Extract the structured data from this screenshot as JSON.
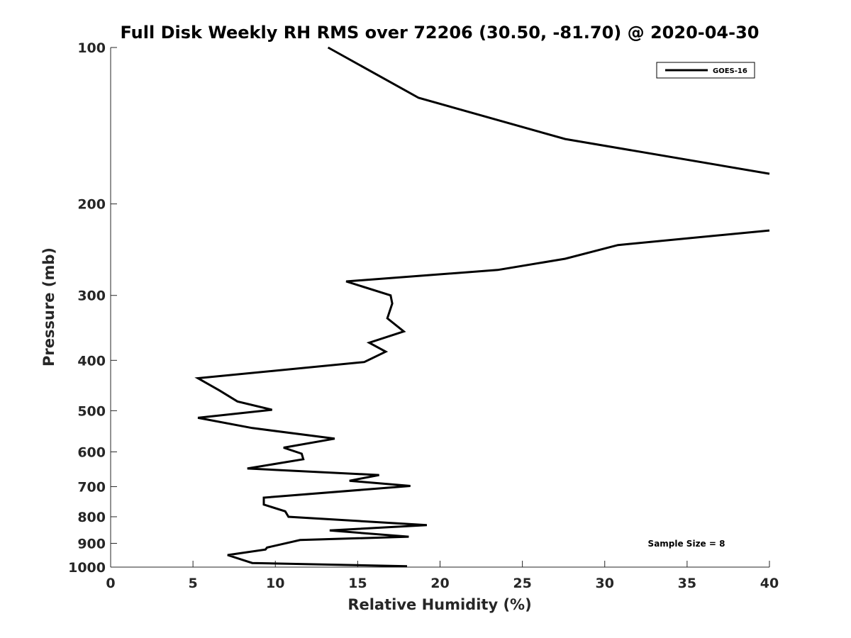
{
  "chart_data": {
    "type": "line",
    "title": "Full Disk Weekly RH RMS over 72206 (30.50, -81.70) @ 2020-04-30",
    "xlabel": "Relative Humidity (%)",
    "ylabel": "Pressure (mb)",
    "xlim": [
      0,
      40
    ],
    "ylim": [
      100,
      1000
    ],
    "yscale": "log",
    "y_reversed": true,
    "xticks": [
      0,
      5,
      10,
      15,
      20,
      25,
      30,
      35,
      40
    ],
    "yticks": [
      100,
      200,
      300,
      400,
      500,
      600,
      700,
      800,
      900,
      1000
    ],
    "grid": false,
    "legend_position": "top-right",
    "annotation": "Sample Size = 8",
    "line_color": "#000000",
    "series": [
      {
        "name": "GOES-16",
        "segments": [
          {
            "x": [
              13.2,
              18.7,
              27.6,
              40.0
            ],
            "y": [
              100,
              125,
              150,
              175
            ]
          },
          {
            "x": [
              40.0,
              30.8,
              27.6,
              23.5,
              14.3,
              17.0,
              17.1,
              16.8,
              17.8,
              15.7,
              16.7,
              15.4,
              5.3,
              6.6,
              7.7,
              9.8,
              5.3,
              8.6,
              13.6,
              10.5,
              11.6,
              11.7,
              8.3,
              16.3,
              14.5,
              18.2,
              9.3,
              9.3,
              10.6,
              10.8,
              19.2,
              13.3,
              18.1,
              11.5,
              9.5,
              9.4,
              7.1,
              8.6,
              18.0
            ],
            "y": [
              225,
              240,
              255,
              268,
              282,
              300,
              311,
              332,
              352,
              370,
              385,
              403,
              433,
              457,
              480,
              498,
              516,
              540,
              566,
              589,
              605,
              620,
              646,
              665,
              682,
              698,
              735,
              758,
              781,
              800,
              830,
              850,
              874,
              887,
              917,
              925,
              948,
              982,
              996
            ]
          }
        ]
      }
    ]
  }
}
